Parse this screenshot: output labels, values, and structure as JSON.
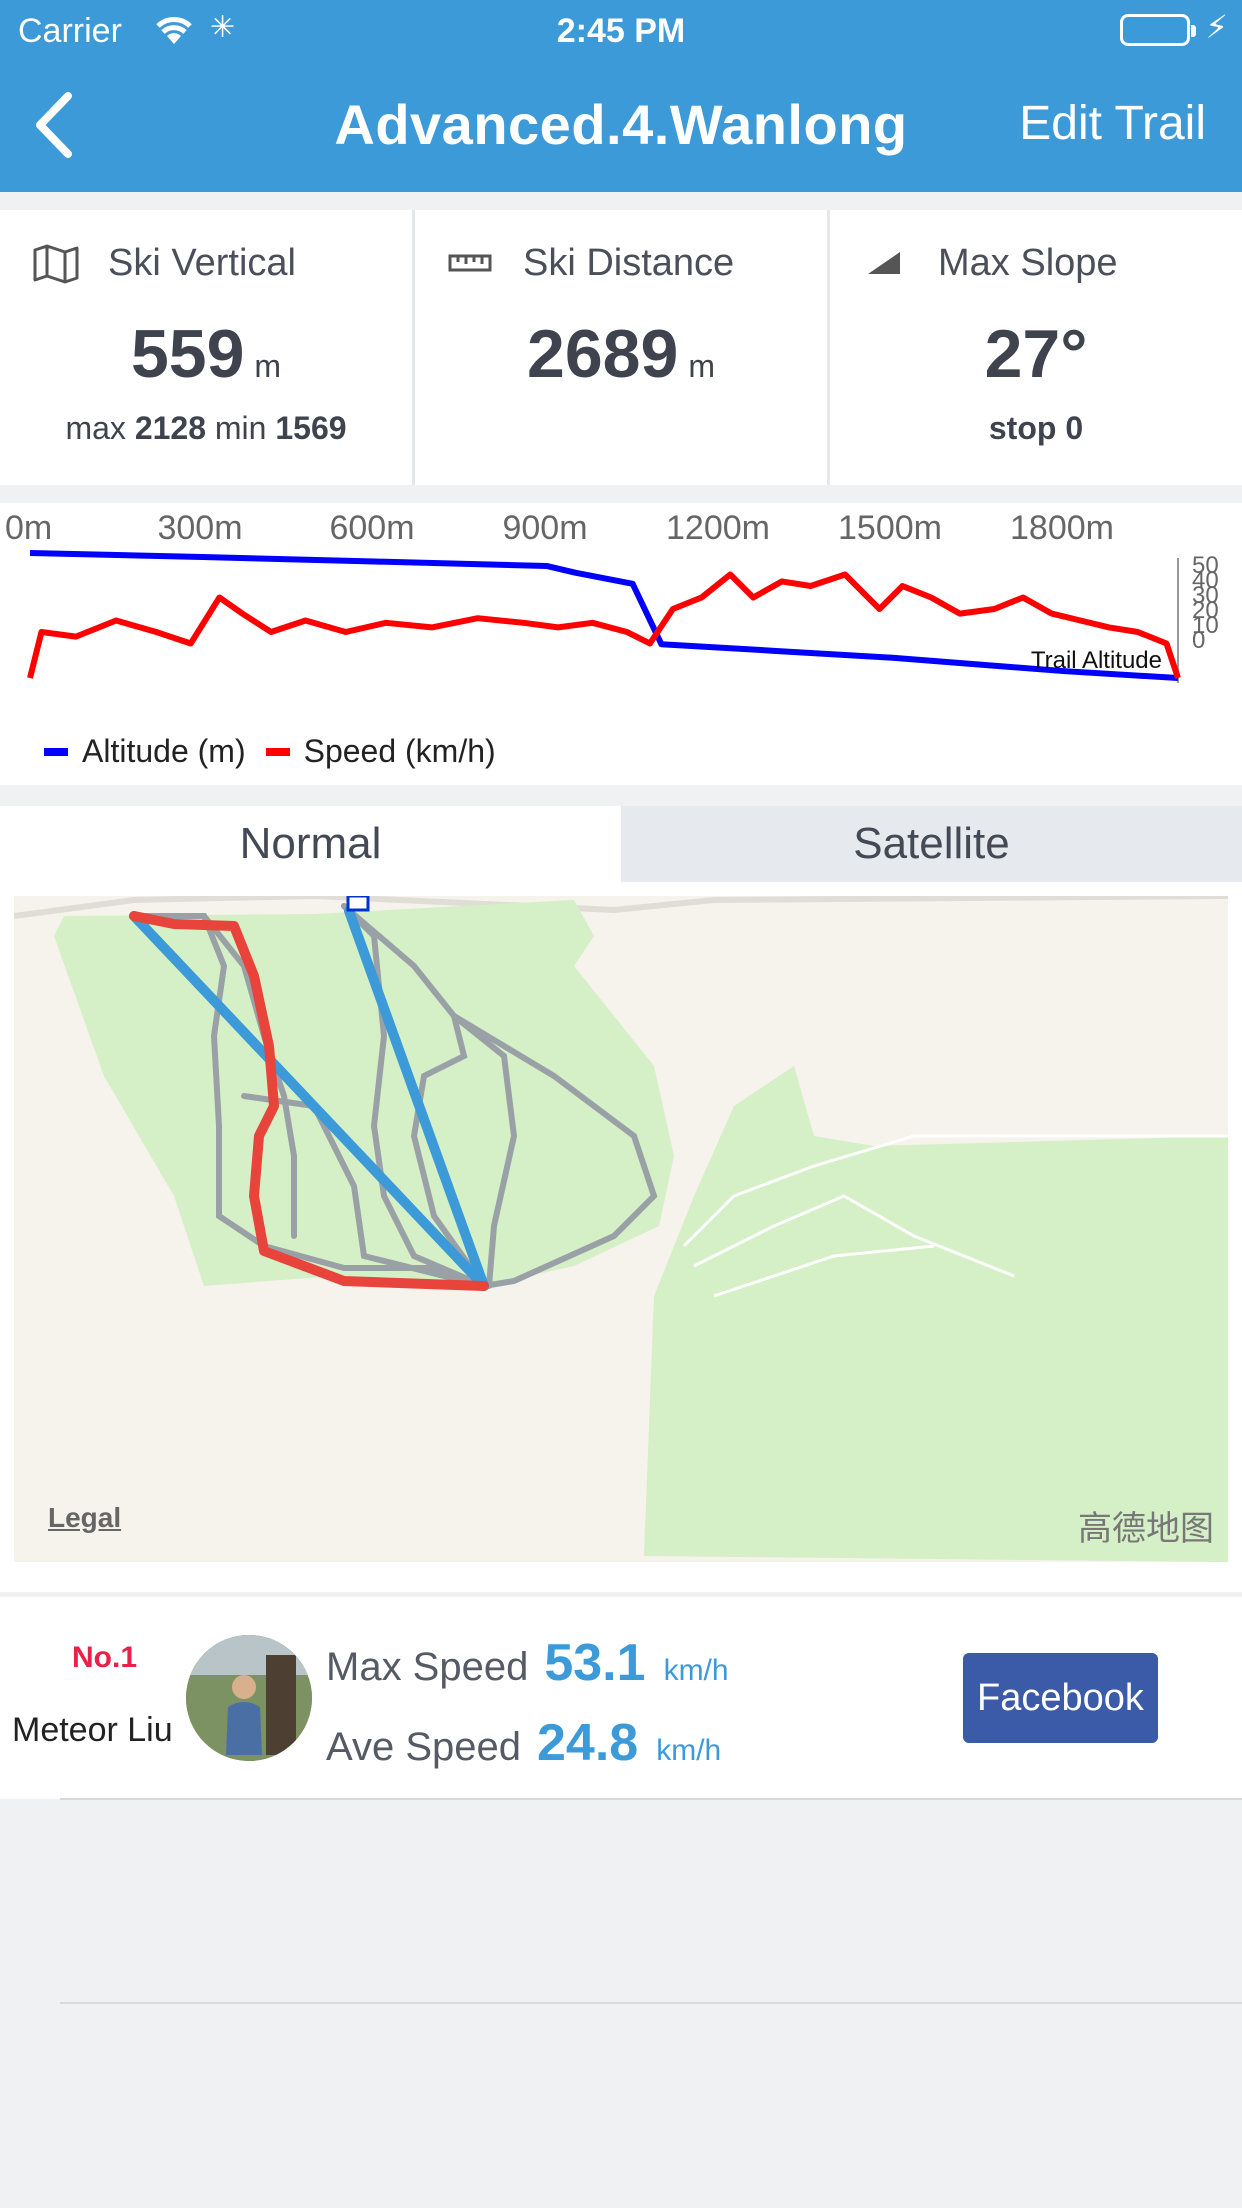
{
  "status": {
    "carrier": "Carrier",
    "time": "2:45 PM"
  },
  "nav": {
    "title": "Advanced.4.Wanlong",
    "edit_label": "Edit Trail"
  },
  "stats": {
    "vertical": {
      "label": "Ski Vertical",
      "value": "559",
      "unit": "m",
      "max_label": "max",
      "max": "2128",
      "min_label": "min",
      "min": "1569"
    },
    "distance": {
      "label": "Ski Distance",
      "value": "2689",
      "unit": "m"
    },
    "slope": {
      "label": "Max Slope",
      "value": "27°",
      "stop_label": "stop 0"
    }
  },
  "chart_data": {
    "type": "line",
    "x_ticks": [
      "0m",
      "300m",
      "600m",
      "900m",
      "1200m",
      "1500m",
      "1800m"
    ],
    "y_ticks_right": [
      "50",
      "40",
      "30",
      "20",
      "10",
      "0"
    ],
    "annotation": "Trail Altitude",
    "legend_placement": "bottom-left",
    "series": [
      {
        "name": "Altitude (m)",
        "color": "#0000ff",
        "x": [
          0,
          300,
          600,
          900,
          950,
          1050,
          1100,
          1300,
          1500,
          1700,
          1800,
          2000
        ],
        "y": [
          2128,
          2110,
          2090,
          2070,
          2040,
          1990,
          1720,
          1690,
          1660,
          1620,
          1600,
          1569
        ]
      },
      {
        "name": "Speed (km/h)",
        "color": "#ff0000",
        "x": [
          0,
          20,
          80,
          150,
          220,
          280,
          330,
          370,
          420,
          480,
          550,
          620,
          700,
          780,
          860,
          920,
          980,
          1040,
          1080,
          1120,
          1170,
          1220,
          1260,
          1310,
          1360,
          1420,
          1480,
          1520,
          1570,
          1620,
          1680,
          1730,
          1780,
          1830,
          1880,
          1930,
          1980,
          2000
        ],
        "y": [
          0,
          20,
          18,
          25,
          20,
          15,
          35,
          28,
          20,
          25,
          20,
          24,
          22,
          26,
          24,
          22,
          24,
          20,
          15,
          30,
          35,
          45,
          35,
          42,
          40,
          45,
          30,
          40,
          35,
          28,
          30,
          35,
          28,
          25,
          22,
          20,
          15,
          0
        ]
      }
    ]
  },
  "map": {
    "tabs": [
      "Normal",
      "Satellite"
    ],
    "legal": "Legal",
    "brand": "高德地图"
  },
  "leader": {
    "rank": "No.1",
    "name": "Meteor Liu",
    "max_label": "Max Speed",
    "max_value": "53.1",
    "ave_label": "Ave Speed",
    "ave_value": "24.8",
    "unit": "km/h",
    "share_label": "Facebook"
  }
}
